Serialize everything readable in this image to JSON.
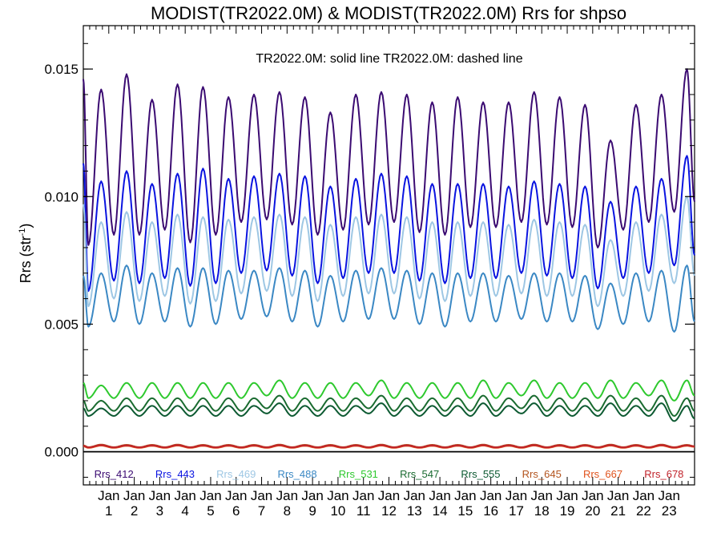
{
  "chart_data": {
    "type": "line",
    "title": "MODIST(TR2022.0M) & MODIST(TR2022.0M)  Rrs for shpso",
    "annotation": "TR2022.0M: solid line   TR2022.0M: dashed line",
    "ylabel": "Rrs (str",
    "ylabel_sup": "-1",
    "ylabel_close": ")",
    "ylim": [
      -0.0013,
      0.0167
    ],
    "xlim": [
      0,
      24
    ],
    "yticks": [
      {
        "value": 0.0,
        "label": "0.000"
      },
      {
        "value": 0.005,
        "label": "0.005"
      },
      {
        "value": 0.01,
        "label": "0.010"
      },
      {
        "value": 0.015,
        "label": "0.015"
      }
    ],
    "xticks_month": "Jan",
    "xticks": [
      {
        "value": 1,
        "label": "1"
      },
      {
        "value": 2,
        "label": "2"
      },
      {
        "value": 3,
        "label": "3"
      },
      {
        "value": 4,
        "label": "4"
      },
      {
        "value": 5,
        "label": "5"
      },
      {
        "value": 6,
        "label": "6"
      },
      {
        "value": 7,
        "label": "7"
      },
      {
        "value": 8,
        "label": "8"
      },
      {
        "value": 9,
        "label": "9"
      },
      {
        "value": 10,
        "label": "10"
      },
      {
        "value": 11,
        "label": "11"
      },
      {
        "value": 12,
        "label": "12"
      },
      {
        "value": 13,
        "label": "13"
      },
      {
        "value": 14,
        "label": "14"
      },
      {
        "value": 15,
        "label": "15"
      },
      {
        "value": 16,
        "label": "16"
      },
      {
        "value": 17,
        "label": "17"
      },
      {
        "value": 18,
        "label": "18"
      },
      {
        "value": 19,
        "label": "19"
      },
      {
        "value": 20,
        "label": "20"
      },
      {
        "value": 21,
        "label": "21"
      },
      {
        "value": 22,
        "label": "22"
      },
      {
        "value": 23,
        "label": "23"
      }
    ],
    "zero_line": 0.0,
    "legend_placement": "bottom",
    "series": [
      {
        "name": "Rrs_412",
        "color": "#3b0b72",
        "peaks": [
          0.0142,
          0.0148,
          0.0138,
          0.0144,
          0.0143,
          0.0139,
          0.014,
          0.0141,
          0.0139,
          0.0133,
          0.014,
          0.0141,
          0.014,
          0.0137,
          0.0139,
          0.0137,
          0.0137,
          0.0141,
          0.0139,
          0.0136,
          0.0122,
          0.0136,
          0.014,
          0.015
        ],
        "troughs": [
          0.0081,
          0.0085,
          0.0085,
          0.0087,
          0.0082,
          0.0085,
          0.009,
          0.0091,
          0.0089,
          0.0085,
          0.0087,
          0.0089,
          0.009,
          0.0086,
          0.0085,
          0.0088,
          0.0088,
          0.009,
          0.0089,
          0.0088,
          0.008,
          0.0087,
          0.009,
          0.0094
        ],
        "start": 0.0146,
        "end": 0.0098
      },
      {
        "name": "Rrs_443",
        "color": "#0a14e0",
        "peaks": [
          0.0106,
          0.011,
          0.0105,
          0.0109,
          0.0111,
          0.0107,
          0.0108,
          0.0109,
          0.0108,
          0.0104,
          0.0107,
          0.0109,
          0.0108,
          0.0105,
          0.0105,
          0.0105,
          0.0104,
          0.0106,
          0.0105,
          0.0104,
          0.0098,
          0.0104,
          0.0107,
          0.0116
        ],
        "troughs": [
          0.0063,
          0.0067,
          0.0066,
          0.0068,
          0.0065,
          0.0066,
          0.007,
          0.0071,
          0.0069,
          0.0066,
          0.0068,
          0.007,
          0.007,
          0.0067,
          0.0066,
          0.0068,
          0.0068,
          0.007,
          0.0069,
          0.0068,
          0.0064,
          0.0068,
          0.007,
          0.0073
        ],
        "start": 0.0113,
        "end": 0.0077
      },
      {
        "name": "Rrs_469",
        "color": "#9ec7e4",
        "peaks": [
          0.009,
          0.0094,
          0.009,
          0.0093,
          0.0092,
          0.0091,
          0.0092,
          0.0093,
          0.0092,
          0.0089,
          0.0092,
          0.0093,
          0.0092,
          0.009,
          0.009,
          0.009,
          0.0089,
          0.0091,
          0.009,
          0.0089,
          0.0083,
          0.009,
          0.0093,
          0.01
        ],
        "troughs": [
          0.0057,
          0.006,
          0.0059,
          0.0061,
          0.0058,
          0.0059,
          0.0062,
          0.0063,
          0.0061,
          0.0059,
          0.0061,
          0.0062,
          0.0062,
          0.006,
          0.0059,
          0.0061,
          0.0061,
          0.0062,
          0.0061,
          0.0061,
          0.0057,
          0.0061,
          0.0063,
          0.0066
        ],
        "start": 0.0097,
        "end": 0.0069
      },
      {
        "name": "Rrs_488",
        "color": "#3b88c4",
        "peaks": [
          0.007,
          0.0073,
          0.007,
          0.0072,
          0.0072,
          0.0071,
          0.0071,
          0.0072,
          0.0071,
          0.0069,
          0.0071,
          0.0072,
          0.0071,
          0.007,
          0.007,
          0.007,
          0.0069,
          0.007,
          0.007,
          0.0069,
          0.0066,
          0.007,
          0.0071,
          0.0073
        ],
        "troughs": [
          0.0049,
          0.0051,
          0.005,
          0.0051,
          0.0049,
          0.005,
          0.0052,
          0.0053,
          0.0051,
          0.0049,
          0.0051,
          0.0052,
          0.0052,
          0.005,
          0.0049,
          0.0051,
          0.0051,
          0.0052,
          0.0051,
          0.0051,
          0.0048,
          0.005,
          0.0051,
          0.0047
        ],
        "start": 0.0069,
        "end": 0.0051
      },
      {
        "name": "Rrs_531",
        "color": "#2ec92e",
        "peaks": [
          0.0026,
          0.0027,
          0.0027,
          0.0027,
          0.0027,
          0.0027,
          0.0027,
          0.0028,
          0.0027,
          0.0027,
          0.0027,
          0.0028,
          0.0027,
          0.0027,
          0.0027,
          0.0028,
          0.0027,
          0.0028,
          0.0027,
          0.0027,
          0.0028,
          0.0027,
          0.0028,
          0.0028
        ],
        "troughs": [
          0.0021,
          0.0021,
          0.0021,
          0.0021,
          0.0021,
          0.0021,
          0.0021,
          0.0022,
          0.0021,
          0.0021,
          0.0021,
          0.0022,
          0.0021,
          0.0021,
          0.0021,
          0.0021,
          0.0021,
          0.0022,
          0.0021,
          0.0021,
          0.0021,
          0.0021,
          0.0022,
          0.002
        ],
        "start": 0.0027,
        "end": 0.0022
      },
      {
        "name": "Rrs_547",
        "color": "#1a6b30",
        "peaks": [
          0.002,
          0.0021,
          0.0021,
          0.0021,
          0.0021,
          0.0021,
          0.0021,
          0.0022,
          0.0021,
          0.0021,
          0.0021,
          0.0022,
          0.0021,
          0.0021,
          0.0021,
          0.0022,
          0.0021,
          0.0022,
          0.0021,
          0.0021,
          0.0022,
          0.0021,
          0.0022,
          0.0021
        ],
        "troughs": [
          0.0016,
          0.0016,
          0.0016,
          0.0016,
          0.0016,
          0.0016,
          0.0016,
          0.0017,
          0.0016,
          0.0016,
          0.0016,
          0.0017,
          0.0016,
          0.0016,
          0.0016,
          0.0016,
          0.0016,
          0.0017,
          0.0016,
          0.0016,
          0.0016,
          0.0016,
          0.0016,
          0.0014
        ],
        "start": 0.002,
        "end": 0.0016
      },
      {
        "name": "Rrs_555",
        "color": "#0d5a32",
        "peaks": [
          0.0017,
          0.0018,
          0.0018,
          0.0018,
          0.0018,
          0.0018,
          0.0018,
          0.0019,
          0.0018,
          0.0018,
          0.0018,
          0.0019,
          0.0018,
          0.0018,
          0.0018,
          0.0019,
          0.0018,
          0.0019,
          0.0018,
          0.0018,
          0.0019,
          0.0018,
          0.0019,
          0.0018
        ],
        "troughs": [
          0.0014,
          0.0014,
          0.0014,
          0.0014,
          0.0014,
          0.0014,
          0.0014,
          0.0015,
          0.0014,
          0.0014,
          0.0014,
          0.0015,
          0.0014,
          0.0014,
          0.0014,
          0.0014,
          0.0014,
          0.0015,
          0.0014,
          0.0014,
          0.0014,
          0.0014,
          0.0014,
          0.0012
        ],
        "start": 0.0017,
        "end": 0.0013
      },
      {
        "name": "Rrs_645",
        "color": "#b3541e",
        "peaks": [
          0.00028,
          0.00027,
          0.00027,
          0.00028,
          0.00027,
          0.00027,
          0.00027,
          0.00028,
          0.00027,
          0.00027,
          0.00027,
          0.00028,
          0.00027,
          0.00027,
          0.00027,
          0.00028,
          0.00027,
          0.00028,
          0.00027,
          0.00027,
          0.00028,
          0.00027,
          0.00028,
          0.00027
        ],
        "troughs": [
          0.00018,
          0.00018,
          0.00018,
          0.00018,
          0.00018,
          0.00018,
          0.00018,
          0.00018,
          0.00018,
          0.00018,
          0.00018,
          0.00018,
          0.00018,
          0.00018,
          0.00018,
          0.00018,
          0.00018,
          0.00018,
          0.00018,
          0.00018,
          0.00018,
          0.00018,
          0.00018,
          0.00018
        ],
        "start": 0.00025,
        "end": 0.00022
      },
      {
        "name": "Rrs_667",
        "color": "#e0521c",
        "peaks": [
          0.00024,
          0.00023,
          0.00023,
          0.00024,
          0.00023,
          0.00023,
          0.00023,
          0.00024,
          0.00023,
          0.00023,
          0.00023,
          0.00024,
          0.00023,
          0.00023,
          0.00023,
          0.00024,
          0.00023,
          0.00024,
          0.00023,
          0.00023,
          0.00024,
          0.00023,
          0.00024,
          0.00023
        ],
        "troughs": [
          0.00015,
          0.00015,
          0.00015,
          0.00015,
          0.00015,
          0.00015,
          0.00015,
          0.00015,
          0.00015,
          0.00015,
          0.00015,
          0.00015,
          0.00015,
          0.00015,
          0.00015,
          0.00015,
          0.00015,
          0.00015,
          0.00015,
          0.00015,
          0.00015,
          0.00015,
          0.00015,
          0.00015
        ],
        "start": 0.00021,
        "end": 0.00019
      },
      {
        "name": "Rrs_678",
        "color": "#c0222a",
        "peaks": [
          0.00026,
          0.00025,
          0.00025,
          0.00026,
          0.00025,
          0.00025,
          0.00025,
          0.00026,
          0.00025,
          0.00025,
          0.00025,
          0.00026,
          0.00025,
          0.00025,
          0.00025,
          0.00026,
          0.00025,
          0.00026,
          0.00025,
          0.00025,
          0.00026,
          0.00025,
          0.00026,
          0.00025
        ],
        "troughs": [
          0.00017,
          0.00017,
          0.00017,
          0.00017,
          0.00017,
          0.00017,
          0.00017,
          0.00017,
          0.00017,
          0.00017,
          0.00017,
          0.00017,
          0.00017,
          0.00017,
          0.00017,
          0.00017,
          0.00017,
          0.00017,
          0.00017,
          0.00017,
          0.00017,
          0.00017,
          0.00017,
          0.00017
        ],
        "start": 0.00023,
        "end": 0.00021
      }
    ]
  }
}
